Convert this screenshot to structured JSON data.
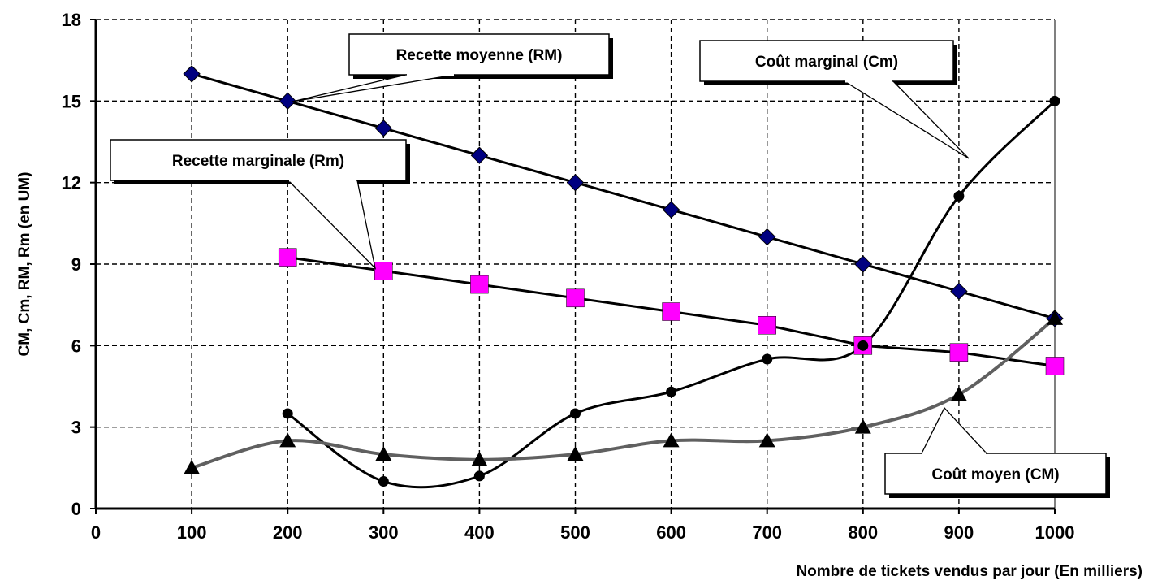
{
  "chart_data": {
    "type": "line",
    "xlabel": "Nombre de tickets vendus par jour (En milliers)",
    "ylabel": "CM, Cm, RM, Rm (en UM)",
    "xlim": [
      0,
      1000
    ],
    "ylim": [
      0,
      18
    ],
    "x_ticks": [
      "0",
      "100",
      "200",
      "300",
      "400",
      "500",
      "600",
      "700",
      "800",
      "900",
      "1000"
    ],
    "y_ticks": [
      "0",
      "3",
      "6",
      "9",
      "12",
      "15",
      "18"
    ],
    "grid": true,
    "series": [
      {
        "name": "Recette moyenne (RM)",
        "color": "#000080",
        "marker": "diamond",
        "line": "straight",
        "points": [
          [
            100,
            16
          ],
          [
            200,
            15
          ],
          [
            300,
            14
          ],
          [
            400,
            13
          ],
          [
            500,
            12
          ],
          [
            600,
            11
          ],
          [
            700,
            10
          ],
          [
            800,
            9
          ],
          [
            900,
            8
          ],
          [
            1000,
            7
          ]
        ]
      },
      {
        "name": "Recette marginale (Rm)",
        "color": "#ff00ff",
        "marker": "square",
        "line": "straight",
        "points": [
          [
            200,
            9.25
          ],
          [
            300,
            8.75
          ],
          [
            400,
            8.25
          ],
          [
            500,
            7.75
          ],
          [
            600,
            7.25
          ],
          [
            700,
            6.75
          ],
          [
            800,
            6.0
          ],
          [
            900,
            5.75
          ],
          [
            1000,
            5.25
          ]
        ]
      },
      {
        "name": "Coût marginal (Cm)",
        "color": "#000000",
        "marker": "circle",
        "line": "smooth",
        "points": [
          [
            200,
            3.5
          ],
          [
            300,
            1.0
          ],
          [
            400,
            1.2
          ],
          [
            500,
            3.5
          ],
          [
            600,
            4.3
          ],
          [
            700,
            5.5
          ],
          [
            800,
            6.0
          ],
          [
            900,
            11.5
          ],
          [
            1000,
            15
          ]
        ]
      },
      {
        "name": "Coût moyen (CM)",
        "color": "#555555",
        "marker": "triangle",
        "line": "smooth",
        "points": [
          [
            100,
            1.5
          ],
          [
            200,
            2.5
          ],
          [
            300,
            2.0
          ],
          [
            400,
            1.8
          ],
          [
            500,
            2.0
          ],
          [
            600,
            2.5
          ],
          [
            700,
            2.5
          ],
          [
            800,
            3.0
          ],
          [
            900,
            4.2
          ],
          [
            1000,
            7
          ]
        ]
      }
    ],
    "annotations": [
      {
        "label": "Recette moyenne (RM)"
      },
      {
        "label": "Recette marginale (Rm)"
      },
      {
        "label": "Coût marginal (Cm)"
      },
      {
        "label": "Coût moyen (CM)"
      }
    ]
  }
}
